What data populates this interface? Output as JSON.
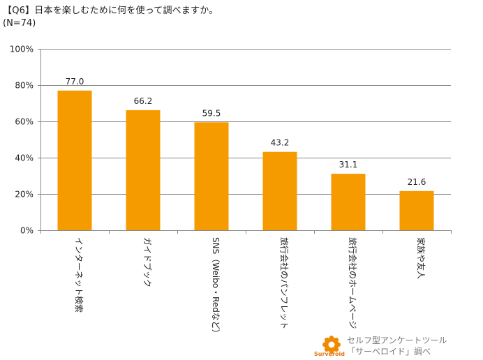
{
  "title": "【Q6】日本を楽しむために何を使って調べますか。",
  "subtitle": "(N=74)",
  "chart_data": {
    "type": "bar",
    "title": "【Q6】日本を楽しむために何を使って調べますか。",
    "subtitle": "(N=74)",
    "categories": [
      "インターネット検索",
      "ガイドブック",
      "SNS（Weibo・Redなど）",
      "旅行会社のパンフレット",
      "旅行会社のホームページ",
      "家族や友人"
    ],
    "values": [
      77.0,
      66.2,
      59.5,
      43.2,
      31.1,
      21.6
    ],
    "value_labels": [
      "77.0",
      "66.2",
      "59.5",
      "43.2",
      "31.1",
      "21.6"
    ],
    "ylim": [
      0,
      100
    ],
    "yticks": [
      0,
      20,
      40,
      60,
      80,
      100
    ],
    "ytick_labels": [
      "0%",
      "20%",
      "40%",
      "60%",
      "80%",
      "100%"
    ],
    "xlabel": "",
    "ylabel": "",
    "grid": true,
    "bar_color": "#F59B00"
  },
  "credit": {
    "brand": "Surveroid",
    "line1": "セルフ型アンケートツール",
    "line2": "「サーベロイド」調べ"
  },
  "colors": {
    "bar": "#F59B00",
    "grid": "#888888",
    "logo": "#F08A00"
  }
}
